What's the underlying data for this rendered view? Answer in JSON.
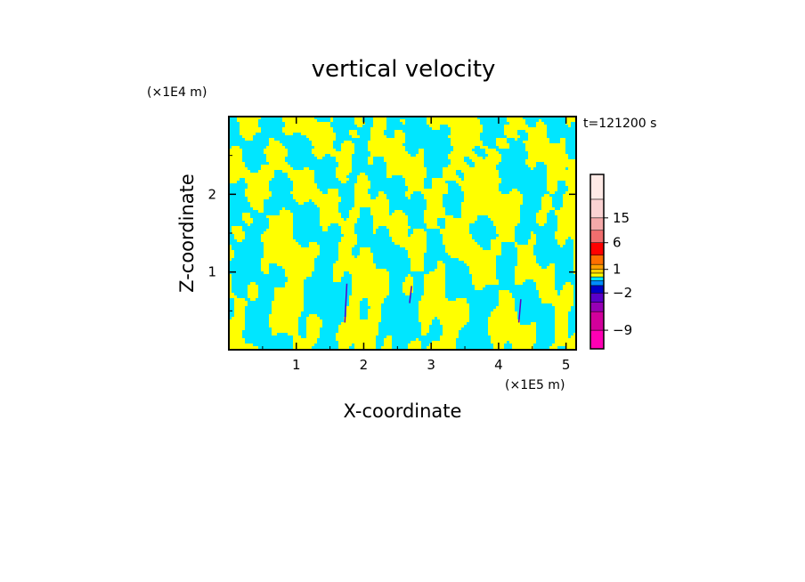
{
  "chart_data": {
    "type": "heatmap",
    "title": "vertical velocity",
    "xlabel": "X-coordinate",
    "ylabel": "Z-coordinate",
    "x_scale_label": "(×1E5 m)",
    "y_scale_label": "(×1E4 m)",
    "time_label": "t=121200 s",
    "xlim": [
      0,
      5.15
    ],
    "ylim": [
      0,
      3.0
    ],
    "x_ticks": [
      1,
      2,
      3,
      4,
      5
    ],
    "y_ticks": [
      1,
      2
    ],
    "colorbar": {
      "levels": [
        "-12",
        "-9",
        "-6",
        "-4",
        "-2",
        "-1",
        "-0.5",
        "0",
        "0.5",
        "1",
        "2",
        "4",
        "6",
        "10",
        "15",
        "20",
        "25"
      ],
      "colors": [
        "#ff00b4",
        "#d2009b",
        "#9600b4",
        "#5a00c8",
        "#0000c8",
        "#008cff",
        "#00e6ff",
        "#ffff00",
        "#ffd200",
        "#ffa000",
        "#ff6e00",
        "#ff0000",
        "#f06e6e",
        "#f5aaaa",
        "#fad2d2",
        "#ffeae6"
      ],
      "labeled_ticks": [
        {
          "value": "-9",
          "text": "−9"
        },
        {
          "value": "-2",
          "text": "−2"
        },
        {
          "value": "1",
          "text": "1"
        },
        {
          "value": "6",
          "text": "6"
        },
        {
          "value": "15",
          "text": "15"
        }
      ]
    },
    "field_colors": {
      "negative": "#00e6ff",
      "positive": "#ffff00"
    },
    "grid": false
  }
}
